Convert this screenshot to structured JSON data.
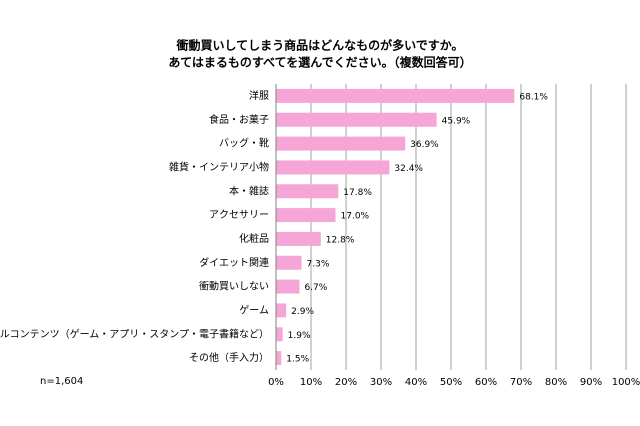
{
  "chart_data": {
    "type": "bar",
    "orientation": "horizontal",
    "title": "衝動買いしてしまう商品はどんなものが多いですか。",
    "subtitle": "あてはまるものすべてを選んでください。（複数回答可）",
    "annotation": "n=1,604",
    "categories": [
      "洋服",
      "食品・お菓子",
      "バッグ・靴",
      "雑貨・インテリア小物",
      "本・雑誌",
      "アクセサリー",
      "化粧品",
      "ダイエット関連",
      "衝動買いしない",
      "ゲーム",
      "デジタルコンテンツ（ゲーム・アプリ・スタンプ・電子書籍など）",
      "その他（手入力）"
    ],
    "values": [
      68.1,
      45.9,
      36.9,
      32.4,
      17.8,
      17.0,
      12.8,
      7.3,
      6.7,
      2.9,
      1.9,
      1.5
    ],
    "value_labels": [
      "68.1%",
      "45.9%",
      "36.9%",
      "32.4%",
      "17.8%",
      "17.0%",
      "12.8%",
      "7.3%",
      "6.7%",
      "2.9%",
      "1.9%",
      "1.5%"
    ],
    "color": "#f6a6d6",
    "xlim": [
      0,
      100
    ],
    "xticks": [
      {
        "value": 0,
        "label": "0%"
      },
      {
        "value": 10,
        "label": "10%"
      },
      {
        "value": 20,
        "label": "20%"
      },
      {
        "value": 30,
        "label": "30%"
      },
      {
        "value": 40,
        "label": "40%"
      },
      {
        "value": 50,
        "label": "50%"
      },
      {
        "value": 60,
        "label": "60%"
      },
      {
        "value": 70,
        "label": "70%"
      },
      {
        "value": 80,
        "label": "80%"
      },
      {
        "value": 90,
        "label": "90%"
      },
      {
        "value": 100,
        "label": "100%"
      }
    ],
    "grid": true
  }
}
